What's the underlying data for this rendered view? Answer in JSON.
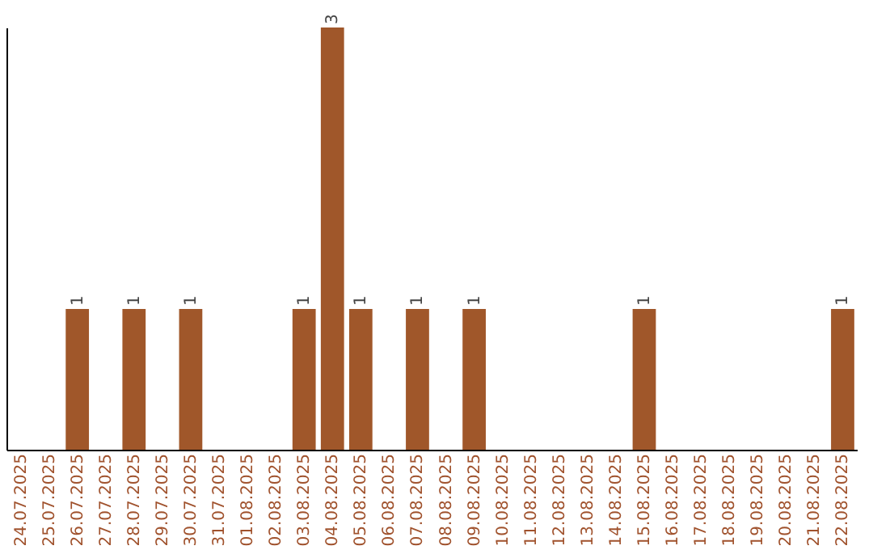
{
  "chart_data": {
    "type": "bar",
    "categories": [
      "24.07.2025",
      "25.07.2025",
      "26.07.2025",
      "27.07.2025",
      "28.07.2025",
      "29.07.2025",
      "30.07.2025",
      "31.07.2025",
      "01.08.2025",
      "02.08.2025",
      "03.08.2025",
      "04.08.2025",
      "05.08.2025",
      "06.08.2025",
      "07.08.2025",
      "08.08.2025",
      "09.08.2025",
      "10.08.2025",
      "11.08.2025",
      "12.08.2025",
      "13.08.2025",
      "14.08.2025",
      "15.08.2025",
      "16.08.2025",
      "17.08.2025",
      "18.08.2025",
      "19.08.2025",
      "20.08.2025",
      "21.08.2025",
      "22.08.2025"
    ],
    "values": [
      null,
      null,
      1,
      null,
      1,
      null,
      1,
      null,
      null,
      null,
      1,
      3,
      1,
      null,
      1,
      null,
      1,
      null,
      null,
      null,
      null,
      null,
      1,
      null,
      null,
      null,
      null,
      null,
      null,
      1
    ],
    "color": "#a0572a",
    "data_labels": true
  }
}
